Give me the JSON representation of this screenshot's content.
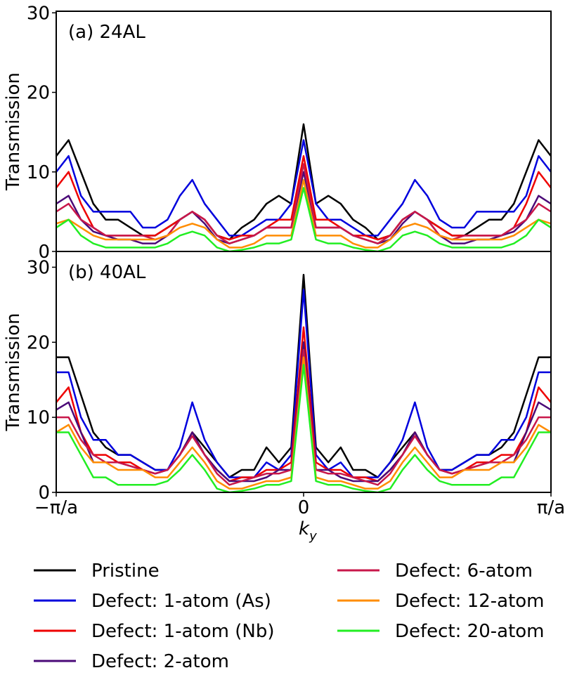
{
  "chart_data": [
    {
      "type": "line",
      "annotation": "(a) 24AL",
      "ylabel": "Transmission",
      "x": [
        -1,
        -0.95,
        -0.9,
        -0.85,
        -0.8,
        -0.75,
        -0.7,
        -0.65,
        -0.6,
        -0.55,
        -0.5,
        -0.45,
        -0.4,
        -0.35,
        -0.3,
        -0.25,
        -0.2,
        -0.15,
        -0.1,
        -0.05,
        0,
        0.05,
        0.1,
        0.15,
        0.2,
        0.25,
        0.3,
        0.35,
        0.4,
        0.45,
        0.5,
        0.55,
        0.6,
        0.65,
        0.7,
        0.75,
        0.8,
        0.85,
        0.9,
        0.95,
        1
      ],
      "xlim": [
        -1,
        1
      ],
      "ylim": [
        0,
        30.2
      ],
      "yticks": [
        0,
        10,
        20,
        30
      ],
      "series": [
        {
          "name": "Pristine",
          "color": "#000000",
          "values": [
            12,
            14,
            10,
            6,
            4,
            4,
            3,
            2,
            2,
            3,
            4,
            5,
            4,
            2,
            1.5,
            3,
            4,
            6,
            7,
            6,
            16,
            6,
            7,
            6,
            4,
            3,
            1.5,
            2,
            4,
            5,
            4,
            3,
            2,
            2,
            3,
            4,
            4,
            6,
            10,
            14,
            12
          ]
        },
        {
          "name": "Defect: 1-atom (As)",
          "color": "#0000dd",
          "values": [
            10,
            12,
            7,
            5,
            5,
            5,
            5,
            3,
            3,
            4,
            7,
            9,
            6,
            4,
            2,
            2,
            3,
            4,
            4,
            6,
            14,
            6,
            4,
            4,
            3,
            2,
            2,
            4,
            6,
            9,
            7,
            4,
            3,
            3,
            5,
            5,
            5,
            5,
            7,
            12,
            10
          ]
        },
        {
          "name": "Defect: 1-atom (Nb)",
          "color": "#ee0000",
          "values": [
            8,
            10,
            6,
            3,
            2,
            2,
            2,
            2,
            2,
            3,
            4,
            5,
            4,
            2,
            1.5,
            2,
            2,
            3,
            4,
            4,
            12,
            4,
            4,
            3,
            2,
            2,
            1.5,
            2,
            4,
            5,
            4,
            3,
            2,
            2,
            2,
            2,
            2,
            3,
            6,
            10,
            8
          ]
        },
        {
          "name": "Defect: 2-atom",
          "color": "#4b0a78",
          "values": [
            6,
            7,
            4,
            2.5,
            2,
            1.5,
            1.5,
            1,
            1,
            2,
            4,
            5,
            3.5,
            1.5,
            1,
            1.5,
            2,
            3,
            3,
            3,
            10,
            3,
            3,
            3,
            2,
            1.5,
            1,
            1.5,
            3.5,
            5,
            4,
            2,
            1,
            1,
            1.5,
            1.5,
            2,
            2.5,
            4,
            7,
            6
          ]
        },
        {
          "name": "Defect: 6-atom",
          "color": "#c8174a",
          "values": [
            5,
            6,
            4,
            3,
            2,
            2,
            2,
            2,
            1.5,
            2,
            4,
            5,
            4,
            2,
            1,
            1.5,
            2,
            3,
            3,
            3,
            11,
            3,
            3,
            3,
            2,
            1.5,
            1,
            2,
            4,
            5,
            4,
            2,
            1.5,
            2,
            2,
            2,
            2,
            3,
            4,
            6,
            5
          ]
        },
        {
          "name": "Defect: 12-atom",
          "color": "#ff8c00",
          "values": [
            3.5,
            4,
            3,
            2,
            1.5,
            1.5,
            1.5,
            1.5,
            1.5,
            2,
            3,
            3.5,
            3,
            1.5,
            0.5,
            0.5,
            1,
            2,
            2,
            2,
            9,
            2,
            2,
            2,
            1,
            0.5,
            0.5,
            1.5,
            3,
            3.5,
            3,
            2,
            1.5,
            1.5,
            1.5,
            1.5,
            1.5,
            2,
            3,
            4,
            3.5
          ]
        },
        {
          "name": "Defect: 20-atom",
          "color": "#22ee22",
          "values": [
            3,
            4,
            2,
            1,
            0.5,
            0.5,
            0.5,
            0.5,
            0.5,
            1,
            2,
            2.5,
            2,
            0.5,
            0,
            0.2,
            0.5,
            1,
            1,
            1.5,
            8,
            1.5,
            1,
            1,
            0.5,
            0.2,
            0,
            0.5,
            2,
            2.5,
            2,
            1,
            0.5,
            0.5,
            0.5,
            0.5,
            0.5,
            1,
            2,
            4,
            3
          ]
        }
      ]
    },
    {
      "type": "line",
      "annotation": "(b) 40AL",
      "ylabel": "Transmission",
      "xlabel": {
        "main": "k",
        "sub": "y"
      },
      "x": [
        -1,
        -0.95,
        -0.9,
        -0.85,
        -0.8,
        -0.75,
        -0.7,
        -0.65,
        -0.6,
        -0.55,
        -0.5,
        -0.45,
        -0.4,
        -0.35,
        -0.3,
        -0.25,
        -0.2,
        -0.15,
        -0.1,
        -0.05,
        0,
        0.05,
        0.1,
        0.15,
        0.2,
        0.25,
        0.3,
        0.35,
        0.4,
        0.45,
        0.5,
        0.55,
        0.6,
        0.65,
        0.7,
        0.75,
        0.8,
        0.85,
        0.9,
        0.95,
        1
      ],
      "xlim": [
        -1,
        1
      ],
      "xticks": [
        {
          "value": -1,
          "label": "−π/a"
        },
        0,
        {
          "value": 1,
          "label": "π/a"
        }
      ],
      "ylim": [
        0,
        32.1
      ],
      "yticks": [
        0,
        10,
        20,
        30
      ],
      "series": [
        {
          "color": "#000000",
          "values": [
            18,
            18,
            13,
            8,
            6,
            5,
            5,
            4,
            3,
            3,
            5,
            8,
            6,
            4,
            2,
            3,
            3,
            6,
            4,
            6,
            29,
            6,
            4,
            6,
            3,
            3,
            2,
            4,
            6,
            8,
            5,
            3,
            3,
            4,
            5,
            5,
            6,
            8,
            13,
            18,
            18
          ]
        },
        {
          "color": "#0000dd",
          "values": [
            16,
            16,
            10,
            7,
            7,
            5,
            5,
            4,
            3,
            3,
            6,
            12,
            7,
            4,
            2,
            2,
            2,
            4,
            3,
            5,
            27,
            5,
            3,
            4,
            2,
            2,
            2,
            4,
            7,
            12,
            6,
            3,
            3,
            4,
            5,
            5,
            7,
            7,
            10,
            16,
            16
          ]
        },
        {
          "color": "#ee0000",
          "values": [
            12,
            14,
            8,
            5,
            5,
            4,
            4,
            3,
            2.5,
            3,
            5,
            8,
            5,
            3,
            1.5,
            2,
            2,
            3,
            3,
            4,
            22,
            4,
            3,
            3,
            2,
            2,
            1.5,
            3,
            5,
            8,
            5,
            3,
            2.5,
            3,
            4,
            4,
            5,
            5,
            8,
            14,
            12
          ]
        },
        {
          "color": "#4b0a78",
          "values": [
            11,
            12,
            8,
            4,
            4,
            4,
            3.5,
            3,
            2.5,
            3,
            5,
            8,
            5,
            3,
            1.5,
            1.5,
            1.5,
            2,
            3,
            3,
            20,
            3,
            3,
            2,
            1.5,
            1.5,
            1.5,
            3,
            5,
            8,
            5,
            3,
            2.5,
            3,
            3.5,
            4,
            4,
            4,
            8,
            12,
            11
          ]
        },
        {
          "color": "#c8174a",
          "values": [
            10,
            10,
            7,
            5,
            4,
            4,
            3.5,
            3,
            2.5,
            3,
            5,
            7.5,
            5,
            2.5,
            1,
            1.5,
            2,
            2.5,
            2.5,
            3,
            19,
            3,
            2.5,
            2.5,
            2,
            1.5,
            1,
            2.5,
            5,
            7.5,
            5,
            3,
            2.5,
            3,
            3.5,
            4,
            4,
            5,
            7,
            10,
            10
          ]
        },
        {
          "color": "#ff8c00",
          "values": [
            8,
            9,
            6,
            4,
            4,
            3,
            3,
            3,
            2,
            2,
            4,
            6,
            4,
            1.5,
            0.5,
            0.5,
            1,
            1.5,
            1.5,
            2,
            18,
            2,
            1.5,
            1.5,
            1,
            0.5,
            0.5,
            1.5,
            4,
            6,
            4,
            2,
            2,
            3,
            3,
            3,
            4,
            4,
            6,
            9,
            8
          ]
        },
        {
          "color": "#22ee22",
          "values": [
            8,
            8,
            5,
            2,
            2,
            1,
            1,
            1,
            1,
            1.5,
            3,
            5,
            3,
            0.5,
            0,
            0.2,
            0.5,
            1,
            1,
            1.5,
            17,
            1.5,
            1,
            1,
            0.5,
            0.2,
            0,
            0.5,
            3,
            5,
            3,
            1.5,
            1,
            1,
            1,
            1,
            2,
            2,
            5,
            8,
            8
          ]
        }
      ]
    }
  ]
}
